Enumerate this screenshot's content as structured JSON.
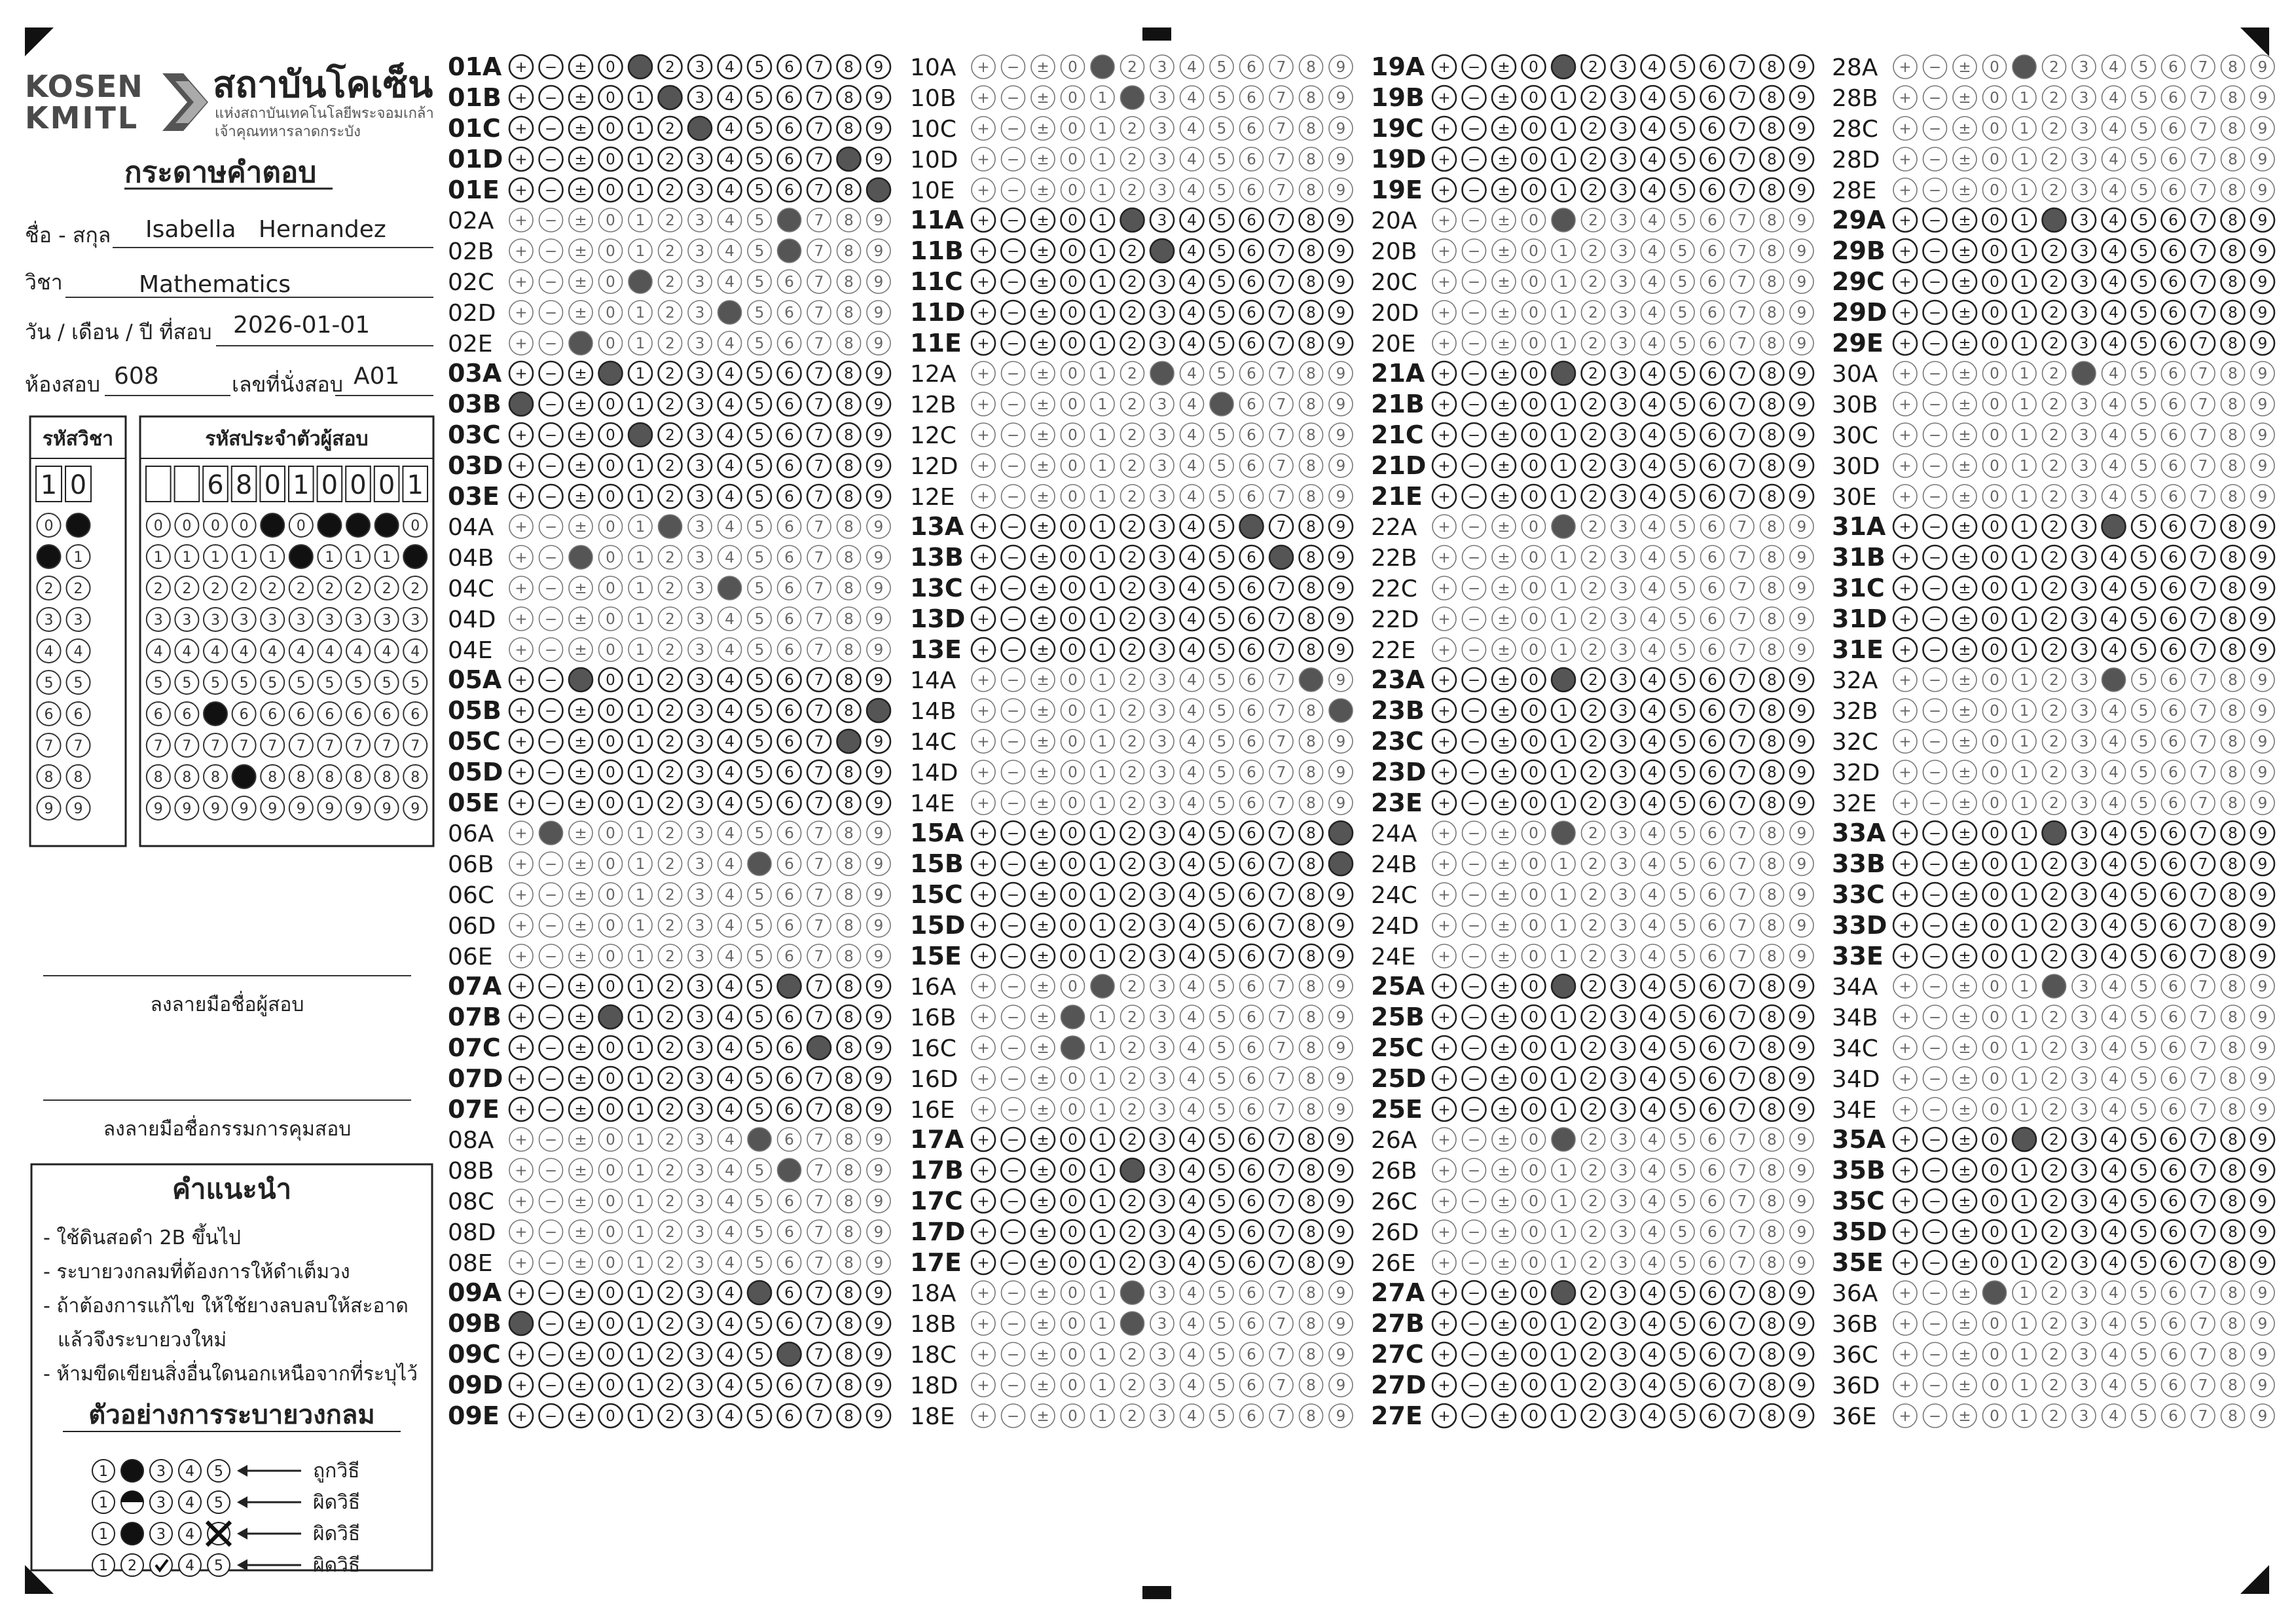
{
  "header": {
    "logo_kosen": "KOSEN",
    "logo_kmitl": "KMITL",
    "institute_name": "สถาบันโคเซ็น",
    "institute_sub1": "แห่งสถาบันเทคโนโลยีพระจอมเกล้า",
    "institute_sub2": "เจ้าคุณทหารลาดกระบัง",
    "sheet_title": "กระดาษคำตอบ"
  },
  "form": {
    "name_label": "ชื่อ - สกุล",
    "name_value": "Isabella   Hernandez",
    "subject_label": "วิชา",
    "subject_value": "Mathematics",
    "date_label": "วัน / เดือน / ปี ที่สอบ",
    "date_value": "2026-01-01",
    "room_label": "ห้องสอบ",
    "room_value": "608",
    "seat_label": "เลขที่นั่งสอบ",
    "seat_value": "A01"
  },
  "codes": {
    "subject_code_label": "รหัสวิชา",
    "subject_code": [
      "1",
      "0"
    ],
    "subject_code_filled": [
      1,
      0
    ],
    "student_id_label": "รหัสประจำตัวผู้สอบ",
    "student_id": [
      "",
      "",
      "6",
      "8",
      "0",
      "1",
      "0",
      "0",
      "0",
      "1"
    ],
    "student_id_filled": [
      null,
      null,
      6,
      8,
      0,
      1,
      0,
      0,
      0,
      1
    ]
  },
  "signatures": {
    "student_sign_label": "ลงลายมือชื่อผู้สอบ",
    "proctor_sign_label": "ลงลายมือชื่อกรรมการคุมสอบ"
  },
  "instructions": {
    "title": "คำแนะนำ",
    "items": [
      "- ใช้ดินสอดำ 2B ขึ้นไป",
      "- ระบายวงกลมที่ต้องการให้ดำเต็มวง",
      "- ถ้าต้องการแก้ไข ให้ใช้ยางลบลบให้สะอาด",
      "แล้วจึงระบายวงใหม่",
      "- ห้ามขีดเขียนสิ่งอื่นใดนอกเหนือจากที่ระบุไว้"
    ],
    "example_title": "ตัวอย่างการระบายวงกลม",
    "examples": [
      {
        "label": "ถูกวิธี"
      },
      {
        "label": "ผิดวิธี"
      },
      {
        "label": "ผิดวิธี"
      },
      {
        "label": "ผิดวิธี"
      }
    ]
  },
  "bubble_symbols": [
    "+",
    "−",
    "±",
    "0",
    "1",
    "2",
    "3",
    "4",
    "5",
    "6",
    "7",
    "8",
    "9"
  ],
  "sub_rows": [
    "A",
    "B",
    "C",
    "D",
    "E"
  ],
  "answers": {
    "01": [
      4,
      5,
      6,
      11,
      12
    ],
    "02": [
      9,
      9,
      4,
      7,
      2
    ],
    "03": [
      3,
      0,
      4,
      null,
      null
    ],
    "04": [
      5,
      2,
      7,
      null,
      null
    ],
    "05": [
      2,
      12,
      11,
      null,
      null
    ],
    "06": [
      1,
      8,
      null,
      null,
      null
    ],
    "07": [
      9,
      3,
      10,
      null,
      null
    ],
    "08": [
      8,
      9,
      null,
      null,
      null
    ],
    "09": [
      8,
      0,
      9,
      null,
      null
    ],
    "10": [
      4,
      5,
      null,
      null,
      null
    ],
    "11": [
      5,
      6,
      null,
      null,
      null
    ],
    "12": [
      6,
      8,
      null,
      null,
      null
    ],
    "13": [
      9,
      10,
      null,
      null,
      null
    ],
    "14": [
      11,
      12,
      null,
      null,
      null
    ],
    "15": [
      12,
      12,
      null,
      null,
      null
    ],
    "16": [
      4,
      3,
      3,
      null,
      null
    ],
    "17": [
      null,
      5,
      null,
      null,
      null
    ],
    "18": [
      5,
      5,
      null,
      null,
      null
    ],
    "19": [
      4,
      null,
      null,
      null,
      null
    ],
    "20": [
      4,
      null,
      null,
      null,
      null
    ],
    "21": [
      4,
      null,
      null,
      null,
      null
    ],
    "22": [
      4,
      null,
      null,
      null,
      null
    ],
    "23": [
      4,
      null,
      null,
      null,
      null
    ],
    "24": [
      4,
      null,
      null,
      null,
      null
    ],
    "25": [
      4,
      null,
      null,
      null,
      null
    ],
    "26": [
      4,
      null,
      null,
      null,
      null
    ],
    "27": [
      4,
      null,
      null,
      null,
      null
    ],
    "28": [
      4,
      null,
      null,
      null,
      null
    ],
    "29": [
      5,
      null,
      null,
      null,
      null
    ],
    "30": [
      6,
      null,
      null,
      null,
      null
    ],
    "31": [
      7,
      null,
      null,
      null,
      null
    ],
    "32": [
      7,
      null,
      null,
      null,
      null
    ],
    "33": [
      5,
      null,
      null,
      null,
      null
    ],
    "34": [
      5,
      null,
      null,
      null,
      null
    ],
    "35": [
      4,
      null,
      null,
      null,
      null
    ],
    "36": [
      3,
      null,
      null,
      null,
      null
    ]
  },
  "bold_questions": [
    "01",
    "03",
    "05",
    "07",
    "09",
    "11",
    "13",
    "15",
    "17",
    "19",
    "21",
    "23",
    "25",
    "27",
    "29",
    "31",
    "33",
    "35"
  ]
}
